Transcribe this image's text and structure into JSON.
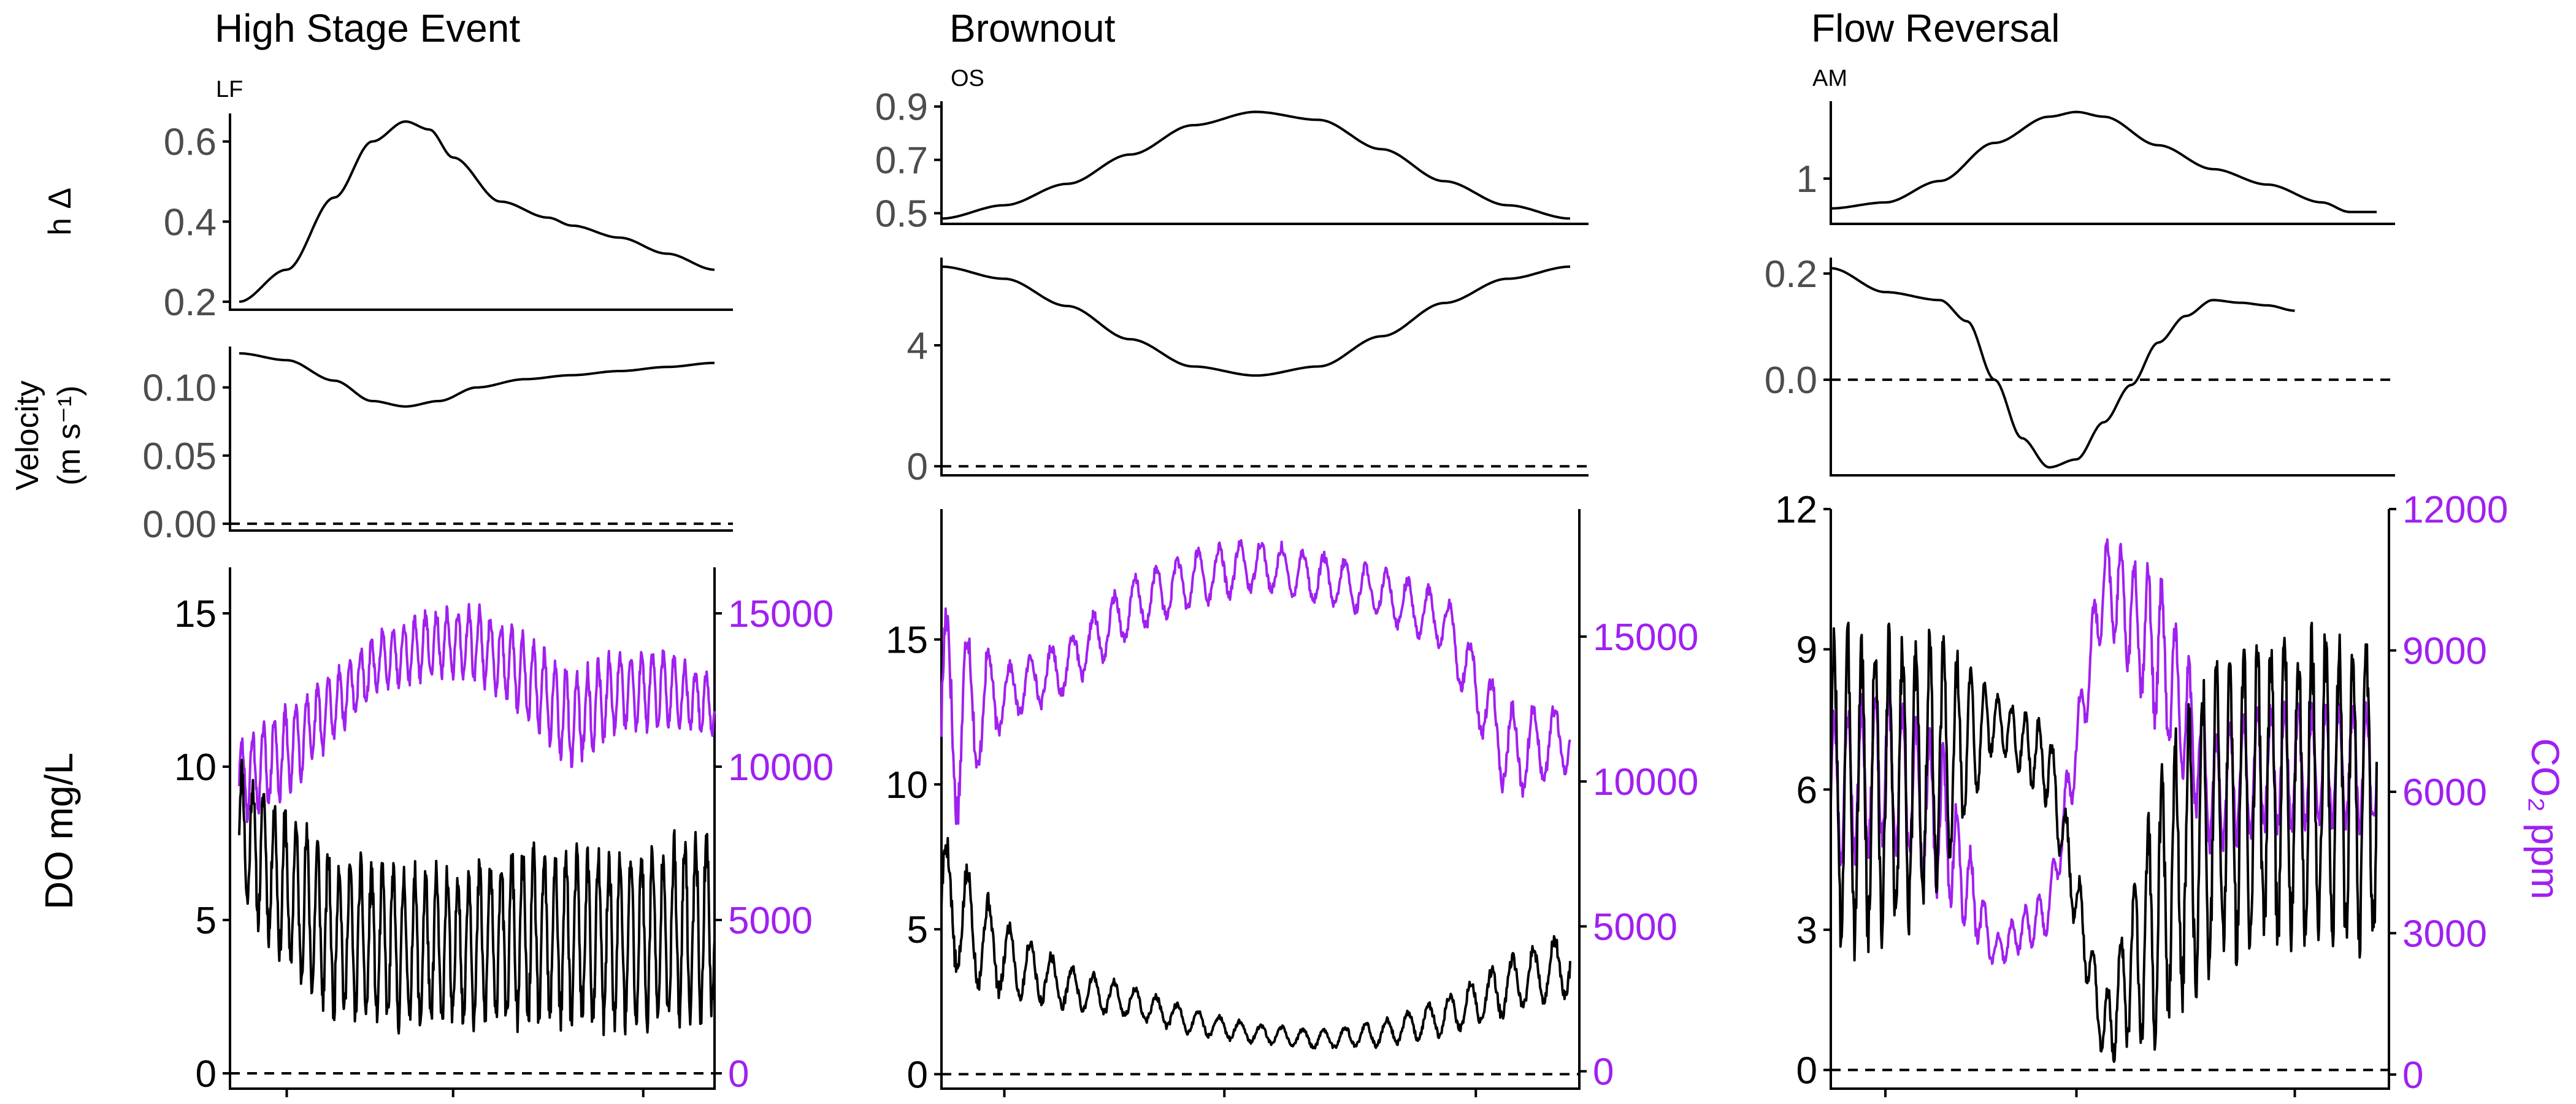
{
  "colors": {
    "do_line": "#000000",
    "co2_line": "#a020f0",
    "zero_line": "#000000"
  },
  "labels": {
    "stage_ylabel": "h Δ",
    "velocity_ylabel_line1": "Velocity",
    "velocity_ylabel_line2": "(m s⁻¹)",
    "do_ylabel": "DO mg/L",
    "co2_ylabel": "CO₂ ppm"
  },
  "chart_data": [
    {
      "type": "line",
      "title": "High Stage Event",
      "site": "LF",
      "x_range": [
        0,
        100
      ],
      "stage": {
        "ylim": [
          0.18,
          0.67
        ],
        "ticks": [
          0.2,
          0.4,
          0.6
        ],
        "tick_labels": [
          "0.2",
          "0.4",
          "0.6"
        ],
        "x": [
          0,
          10,
          20,
          28,
          35,
          40,
          45,
          55,
          65,
          70,
          80,
          90,
          100
        ],
        "y": [
          0.2,
          0.28,
          0.46,
          0.6,
          0.65,
          0.63,
          0.56,
          0.45,
          0.41,
          0.39,
          0.36,
          0.32,
          0.28
        ]
      },
      "velocity": {
        "ylim": [
          -0.005,
          0.13
        ],
        "ticks": [
          0,
          0.05,
          0.1
        ],
        "tick_labels": [
          "0.00",
          "0.05",
          "0.10"
        ],
        "x": [
          0,
          10,
          20,
          28,
          35,
          42,
          50,
          60,
          70,
          80,
          90,
          100
        ],
        "y": [
          0.125,
          0.12,
          0.105,
          0.09,
          0.086,
          0.09,
          0.1,
          0.106,
          0.109,
          0.112,
          0.115,
          0.118
        ]
      },
      "do": {
        "ylim": [
          -0.5,
          16.5
        ],
        "ticks": [
          0,
          5,
          10,
          15
        ],
        "tick_labels": [
          "0",
          "5",
          "10",
          "15"
        ],
        "mean": [
          8,
          6,
          4.5,
          4.2,
          4,
          4.2,
          4.4,
          4.4,
          4.3,
          4.5,
          5
        ],
        "amp": [
          2,
          2.3,
          2.4,
          2.3,
          2.4,
          2.4,
          2.6,
          2.6,
          2.6,
          2.8,
          3
        ],
        "cycles": 44,
        "seed": 11
      },
      "co2": {
        "ylim": [
          -500,
          16500
        ],
        "ticks": [
          0,
          5000,
          10000,
          15000
        ],
        "tick_labels": [
          "0",
          "5000",
          "10000",
          "15000"
        ],
        "mean": [
          9500,
          10500,
          12000,
          13500,
          14000,
          14000,
          13000,
          11500,
          12500,
          12500,
          12000
        ],
        "amp": [
          1200,
          1300,
          1000,
          900,
          1000,
          1100,
          1200,
          1400,
          1200,
          1100,
          900
        ],
        "cycles": 44,
        "seed": 29
      }
    },
    {
      "type": "line",
      "title": "Brownout",
      "site": "OS",
      "x_range": [
        0,
        100
      ],
      "stage": {
        "ylim": [
          0.46,
          0.92
        ],
        "ticks": [
          0.5,
          0.7,
          0.9
        ],
        "tick_labels": [
          "0.5",
          "0.7",
          "0.9"
        ],
        "x": [
          0,
          10,
          20,
          30,
          40,
          50,
          60,
          70,
          80,
          90,
          100
        ],
        "y": [
          0.48,
          0.53,
          0.61,
          0.72,
          0.83,
          0.88,
          0.85,
          0.74,
          0.62,
          0.53,
          0.48
        ]
      },
      "velocity": {
        "ylim": [
          -0.3,
          6.9
        ],
        "ticks": [
          0,
          4
        ],
        "tick_labels": [
          "0",
          "4"
        ],
        "x": [
          0,
          10,
          20,
          30,
          40,
          50,
          60,
          70,
          80,
          90,
          100
        ],
        "y": [
          6.6,
          6.2,
          5.3,
          4.2,
          3.3,
          3.0,
          3.3,
          4.3,
          5.4,
          6.2,
          6.6
        ]
      },
      "do": {
        "ylim": [
          -0.5,
          19.5
        ],
        "ticks": [
          0,
          5,
          10,
          15
        ],
        "tick_labels": [
          "0",
          "5",
          "10",
          "15"
        ],
        "mean": [
          6,
          4,
          3,
          2.5,
          1.8,
          1.4,
          1.2,
          1.4,
          2,
          3,
          3.8
        ],
        "amp": [
          2.2,
          1.2,
          0.7,
          0.5,
          0.4,
          0.3,
          0.3,
          0.4,
          0.6,
          0.9,
          1.1
        ],
        "cycles": 30,
        "seed": 5
      },
      "co2": {
        "ylim": [
          -600,
          19400
        ],
        "ticks": [
          0,
          5000,
          10000,
          15000
        ],
        "tick_labels": [
          "0",
          "5000",
          "10000",
          "15000"
        ],
        "mean": [
          12000,
          13000,
          14000,
          16000,
          17000,
          17500,
          17000,
          16500,
          15500,
          11000,
          11500
        ],
        "amp": [
          4000,
          900,
          900,
          900,
          900,
          800,
          800,
          800,
          900,
          1500,
          1000
        ],
        "cycles": 30,
        "seed": 17
      }
    },
    {
      "type": "line",
      "title": "Flow Reversal",
      "site": "AM",
      "x_range": [
        0,
        100
      ],
      "stage": {
        "ylim": [
          0.62,
          1.65
        ],
        "ticks": [
          1
        ],
        "tick_labels": [
          "1"
        ],
        "x": [
          0,
          10,
          20,
          30,
          40,
          45,
          50,
          60,
          70,
          80,
          90,
          95,
          100
        ],
        "y": [
          0.75,
          0.8,
          0.98,
          1.3,
          1.52,
          1.56,
          1.52,
          1.28,
          1.08,
          0.95,
          0.8,
          0.72,
          0.72
        ]
      },
      "velocity": {
        "ylim": [
          -0.18,
          0.23
        ],
        "ticks": [
          0,
          0.2
        ],
        "tick_labels": [
          "0.0",
          "0.2"
        ],
        "x": [
          0,
          10,
          20,
          25,
          30,
          35,
          40,
          45,
          50,
          55,
          60,
          65,
          70,
          75,
          80,
          85
        ],
        "y": [
          0.21,
          0.165,
          0.15,
          0.11,
          0.0,
          -0.11,
          -0.165,
          -0.15,
          -0.08,
          -0.01,
          0.07,
          0.12,
          0.15,
          0.145,
          0.14,
          0.13
        ]
      },
      "do": {
        "ylim": [
          -0.4,
          12.0
        ],
        "ticks": [
          0,
          3,
          6,
          9,
          12
        ],
        "tick_labels": [
          "0",
          "3",
          "6",
          "9",
          "12"
        ],
        "mean": [
          6,
          6,
          6.5,
          7.5,
          6.5,
          0.8,
          3.5,
          5.5,
          6,
          6,
          6
        ],
        "amp": [
          3,
          3,
          2.5,
          0.5,
          0.8,
          0.6,
          2.5,
          3,
          3,
          3,
          3
        ],
        "cycles": 40,
        "seed": 3
      },
      "co2": {
        "ylim": [
          -300,
          12000
        ],
        "ticks": [
          0,
          3000,
          6000,
          9000,
          12000
        ],
        "tick_labels": [
          "0",
          "3000",
          "6000",
          "9000",
          "12000"
        ],
        "mean": [
          6000,
          6500,
          5500,
          2600,
          3500,
          10500,
          9000,
          6000,
          6500,
          6500,
          6500
        ],
        "amp": [
          1500,
          1500,
          1500,
          300,
          500,
          800,
          1500,
          1200,
          1200,
          1200,
          1200
        ],
        "cycles": 40,
        "seed": 23
      }
    }
  ]
}
